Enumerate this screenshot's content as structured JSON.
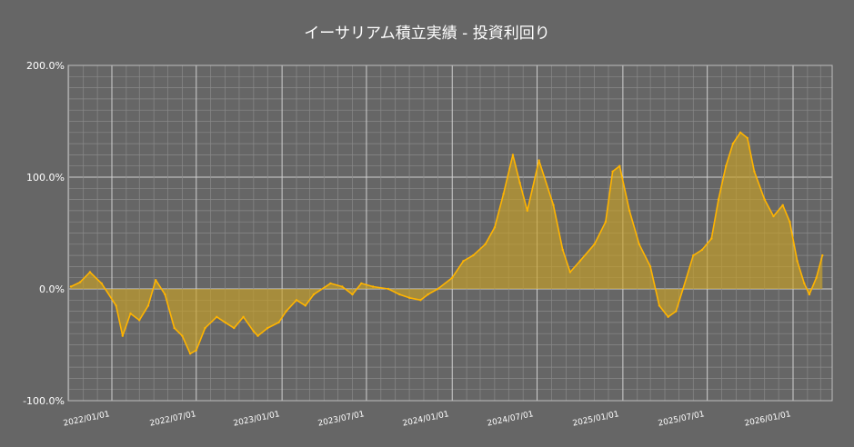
{
  "chart_data": {
    "type": "area",
    "title": "イーサリアム積立実績  -  投資利回り",
    "xlabel": "",
    "ylabel": "",
    "ylim": [
      -100,
      200
    ],
    "y_ticks": [
      {
        "value": 200,
        "label": "200.0%"
      },
      {
        "value": 100,
        "label": "100.0%"
      },
      {
        "value": 0,
        "label": "0.0%"
      },
      {
        "value": -100,
        "label": "-100.0%"
      }
    ],
    "x_ticks": [
      "2022/01/01",
      "2022/07/01",
      "2023/01/01",
      "2023/07/01",
      "2024/01/01",
      "2024/07/01",
      "2025/01/01",
      "2025/07/01",
      "2026/01/01"
    ],
    "grid": true,
    "line_color": "#ffb400",
    "fill_color": "#c9a227",
    "background": "#666666",
    "series": [
      {
        "x": [
          "2021/10/05",
          "2021/10/25",
          "2021/11/15",
          "2021/12/10",
          "2022/01/10",
          "2022/01/24",
          "2022/02/10",
          "2022/03/01",
          "2022/03/20",
          "2022/04/05",
          "2022/04/25",
          "2022/05/15",
          "2022/06/01",
          "2022/06/18",
          "2022/07/01",
          "2022/07/20",
          "2022/08/14",
          "2022/09/01",
          "2022/09/20",
          "2022/10/10",
          "2022/11/01",
          "2022/11/10",
          "2022/12/01",
          "2022/12/25",
          "2023/01/10",
          "2023/02/01",
          "2023/02/20",
          "2023/03/10",
          "2023/04/15",
          "2023/05/10",
          "2023/06/01",
          "2023/06/20",
          "2023/07/15",
          "2023/08/17",
          "2023/09/10",
          "2023/10/01",
          "2023/10/25",
          "2023/11/10",
          "2023/12/01",
          "2024/01/01",
          "2024/01/25",
          "2024/02/15",
          "2024/03/12",
          "2024/04/01",
          "2024/04/20",
          "2024/05/10",
          "2024/05/25",
          "2024/06/10",
          "2024/07/05",
          "2024/08/05",
          "2024/08/25",
          "2024/09/10",
          "2024/10/01",
          "2024/11/01",
          "2024/11/25",
          "2024/12/10",
          "2024/12/25",
          "2025/01/15",
          "2025/02/05",
          "2025/03/01",
          "2025/03/20",
          "2025/04/08",
          "2025/04/25",
          "2025/05/10",
          "2025/06/01",
          "2025/06/20",
          "2025/07/10",
          "2025/07/25",
          "2025/08/10",
          "2025/08/25",
          "2025/09/10",
          "2025/09/25",
          "2025/10/10",
          "2025/11/01",
          "2025/11/20",
          "2025/12/10",
          "2025/12/25",
          "2026/01/10",
          "2026/01/25",
          "2026/02/05",
          "2026/02/20",
          "2026/03/05"
        ],
        "y": [
          2,
          6,
          15,
          5,
          -15,
          -42,
          -22,
          -28,
          -15,
          8,
          -5,
          -35,
          -42,
          -58,
          -55,
          -35,
          -25,
          -30,
          -35,
          -25,
          -38,
          -42,
          -35,
          -30,
          -20,
          -10,
          -15,
          -5,
          5,
          2,
          -5,
          5,
          2,
          0,
          -5,
          -8,
          -10,
          -5,
          0,
          10,
          25,
          30,
          40,
          55,
          85,
          120,
          95,
          70,
          115,
          75,
          35,
          15,
          25,
          40,
          60,
          105,
          110,
          70,
          40,
          20,
          -15,
          -25,
          -20,
          0,
          30,
          35,
          45,
          80,
          110,
          130,
          140,
          135,
          105,
          80,
          65,
          75,
          60,
          25,
          5,
          -5,
          10,
          30
        ]
      }
    ]
  }
}
